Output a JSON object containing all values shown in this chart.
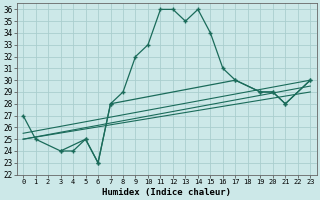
{
  "xlabel": "Humidex (Indice chaleur)",
  "ylabel": "",
  "bg_color": "#cce8e8",
  "grid_color": "#aacece",
  "line_color": "#1a6b5a",
  "xlim": [
    -0.5,
    23.5
  ],
  "ylim": [
    22,
    36.5
  ],
  "xticks": [
    0,
    1,
    2,
    3,
    4,
    5,
    6,
    7,
    8,
    9,
    10,
    11,
    12,
    13,
    14,
    15,
    16,
    17,
    18,
    19,
    20,
    21,
    22,
    23
  ],
  "yticks": [
    22,
    23,
    24,
    25,
    26,
    27,
    28,
    29,
    30,
    31,
    32,
    33,
    34,
    35,
    36
  ],
  "series": [
    {
      "x": [
        0,
        1,
        3,
        4,
        5,
        6,
        7,
        8,
        9,
        10,
        11,
        12,
        13,
        14,
        15,
        16,
        17,
        19,
        20,
        21,
        23
      ],
      "y": [
        27,
        25,
        24,
        24,
        25,
        23,
        28,
        29,
        32,
        33,
        36,
        36,
        35,
        36,
        34,
        31,
        30,
        29,
        29,
        28,
        30
      ]
    },
    {
      "x": [
        0,
        23
      ],
      "y": [
        25,
        29
      ]
    },
    {
      "x": [
        0,
        23
      ],
      "y": [
        25,
        29.5
      ]
    },
    {
      "x": [
        0,
        23
      ],
      "y": [
        25.5,
        30
      ]
    },
    {
      "x": [
        3,
        5,
        6,
        7,
        17,
        19,
        20,
        21,
        23
      ],
      "y": [
        24,
        25,
        23,
        28,
        30,
        29,
        29,
        28,
        30
      ]
    }
  ]
}
